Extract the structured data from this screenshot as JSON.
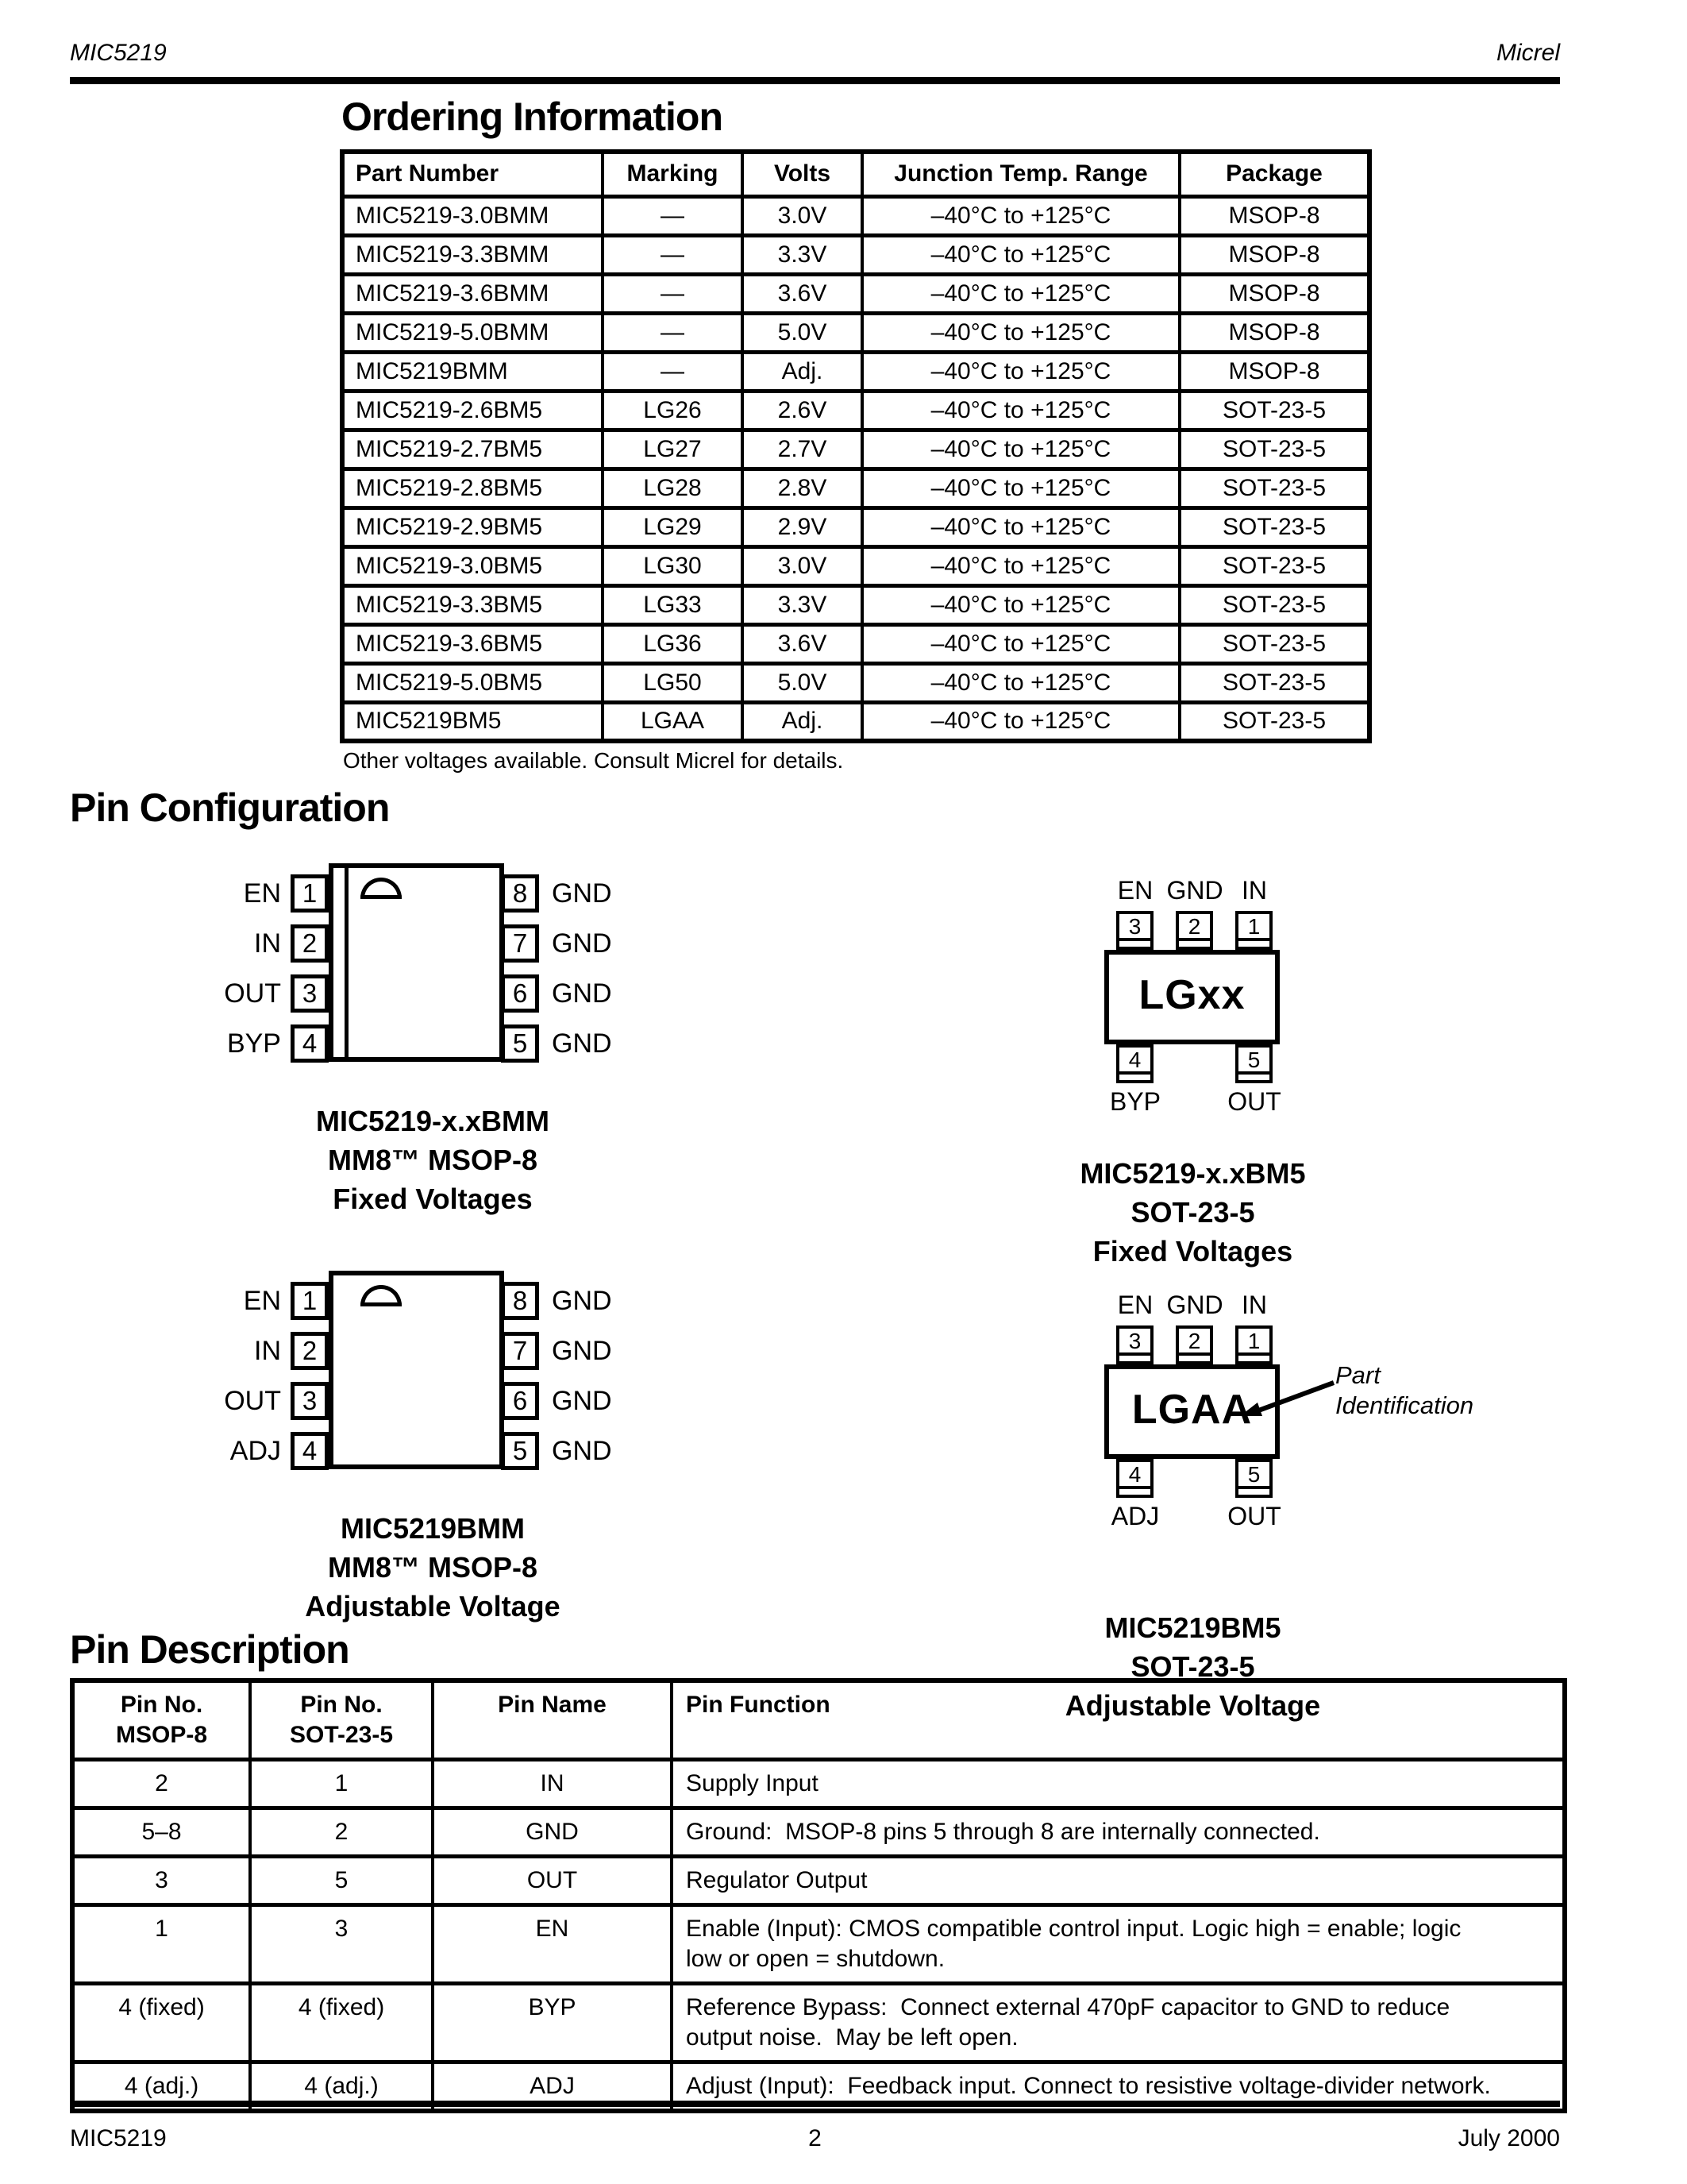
{
  "page": {
    "header_left": "MIC5219",
    "header_right": "Micrel",
    "footer_left": "MIC5219",
    "footer_page_number": "2",
    "footer_right": "July 2000"
  },
  "ordering": {
    "title": "Ordering Information",
    "columns": [
      "Part Number",
      "Marking",
      "Volts",
      "Junction Temp. Range",
      "Package"
    ],
    "rows": [
      [
        "MIC5219-3.0BMM",
        "—",
        "3.0V",
        "–40°C to +125°C",
        "MSOP-8"
      ],
      [
        "MIC5219-3.3BMM",
        "—",
        "3.3V",
        "–40°C to +125°C",
        "MSOP-8"
      ],
      [
        "MIC5219-3.6BMM",
        "—",
        "3.6V",
        "–40°C to +125°C",
        "MSOP-8"
      ],
      [
        "MIC5219-5.0BMM",
        "—",
        "5.0V",
        "–40°C to +125°C",
        "MSOP-8"
      ],
      [
        "MIC5219BMM",
        "—",
        "Adj.",
        "–40°C to +125°C",
        "MSOP-8"
      ],
      [
        "MIC5219-2.6BM5",
        "LG26",
        "2.6V",
        "–40°C to +125°C",
        "SOT-23-5"
      ],
      [
        "MIC5219-2.7BM5",
        "LG27",
        "2.7V",
        "–40°C to +125°C",
        "SOT-23-5"
      ],
      [
        "MIC5219-2.8BM5",
        "LG28",
        "2.8V",
        "–40°C to +125°C",
        "SOT-23-5"
      ],
      [
        "MIC5219-2.9BM5",
        "LG29",
        "2.9V",
        "–40°C to +125°C",
        "SOT-23-5"
      ],
      [
        "MIC5219-3.0BM5",
        "LG30",
        "3.0V",
        "–40°C to +125°C",
        "SOT-23-5"
      ],
      [
        "MIC5219-3.3BM5",
        "LG33",
        "3.3V",
        "–40°C to +125°C",
        "SOT-23-5"
      ],
      [
        "MIC5219-3.6BM5",
        "LG36",
        "3.6V",
        "–40°C to +125°C",
        "SOT-23-5"
      ],
      [
        "MIC5219-5.0BM5",
        "LG50",
        "5.0V",
        "–40°C to +125°C",
        "SOT-23-5"
      ],
      [
        "MIC5219BM5",
        "LGAA",
        "Adj.",
        "–40°C to +125°C",
        "SOT-23-5"
      ]
    ],
    "note": "Other voltages available. Consult Micrel for details."
  },
  "pin_config": {
    "title": "Pin Configuration",
    "msop_fixed": {
      "left_pins": [
        {
          "label": "EN",
          "num": "1"
        },
        {
          "label": "IN",
          "num": "2"
        },
        {
          "label": "OUT",
          "num": "3"
        },
        {
          "label": "BYP",
          "num": "4"
        }
      ],
      "right_pins": [
        {
          "num": "8",
          "label": "GND"
        },
        {
          "num": "7",
          "label": "GND"
        },
        {
          "num": "6",
          "label": "GND"
        },
        {
          "num": "5",
          "label": "GND"
        }
      ],
      "caption": [
        "MIC5219-x.xBMM",
        "MM8™ MSOP-8",
        "Fixed Voltages"
      ]
    },
    "msop_adj": {
      "left_pins": [
        {
          "label": "EN",
          "num": "1"
        },
        {
          "label": "IN",
          "num": "2"
        },
        {
          "label": "OUT",
          "num": "3"
        },
        {
          "label": "ADJ",
          "num": "4"
        }
      ],
      "right_pins": [
        {
          "num": "8",
          "label": "GND"
        },
        {
          "num": "7",
          "label": "GND"
        },
        {
          "num": "6",
          "label": "GND"
        },
        {
          "num": "5",
          "label": "GND"
        }
      ],
      "caption": [
        "MIC5219BMM",
        "MM8™ MSOP-8",
        "Adjustable Voltage"
      ]
    },
    "sot_fixed": {
      "top_pins": [
        {
          "label": "EN",
          "num": "3"
        },
        {
          "label": "GND",
          "num": "2"
        },
        {
          "label": "IN",
          "num": "1"
        }
      ],
      "chip_label": "LGxx",
      "bottom_pins": [
        {
          "num": "4",
          "label": "BYP"
        },
        {
          "num": "5",
          "label": "OUT"
        }
      ],
      "caption": [
        "MIC5219-x.xBM5",
        "SOT-23-5",
        "Fixed Voltages"
      ]
    },
    "sot_adj": {
      "top_pins": [
        {
          "label": "EN",
          "num": "3"
        },
        {
          "label": "GND",
          "num": "2"
        },
        {
          "label": "IN",
          "num": "1"
        }
      ],
      "chip_label": "LGAA",
      "bottom_pins": [
        {
          "num": "4",
          "label": "ADJ"
        },
        {
          "num": "5",
          "label": "OUT"
        }
      ],
      "annotation": "Part\nIdentification",
      "caption": [
        "MIC5219BM5",
        "SOT-23-5",
        "Adjustable Voltage"
      ]
    }
  },
  "pin_desc": {
    "title": "Pin Description",
    "columns": [
      "Pin No.\nMSOP-8",
      "Pin No.\nSOT-23-5",
      "Pin Name",
      "Pin Function"
    ],
    "rows": [
      [
        "2",
        "1",
        "IN",
        "Supply Input"
      ],
      [
        "5–8",
        "2",
        "GND",
        "Ground:  MSOP-8 pins 5 through 8 are internally connected."
      ],
      [
        "3",
        "5",
        "OUT",
        "Regulator Output"
      ],
      [
        "1",
        "3",
        "EN",
        "Enable (Input): CMOS compatible control input. Logic high = enable; logic\nlow or open = shutdown."
      ],
      [
        "4 (fixed)",
        "4 (fixed)",
        "BYP",
        "Reference Bypass:  Connect external 470pF capacitor to GND to reduce\noutput noise.  May be left open."
      ],
      [
        "4 (adj.)",
        "4 (adj.)",
        "ADJ",
        "Adjust (Input):  Feedback input. Connect to resistive voltage-divider network."
      ]
    ]
  }
}
